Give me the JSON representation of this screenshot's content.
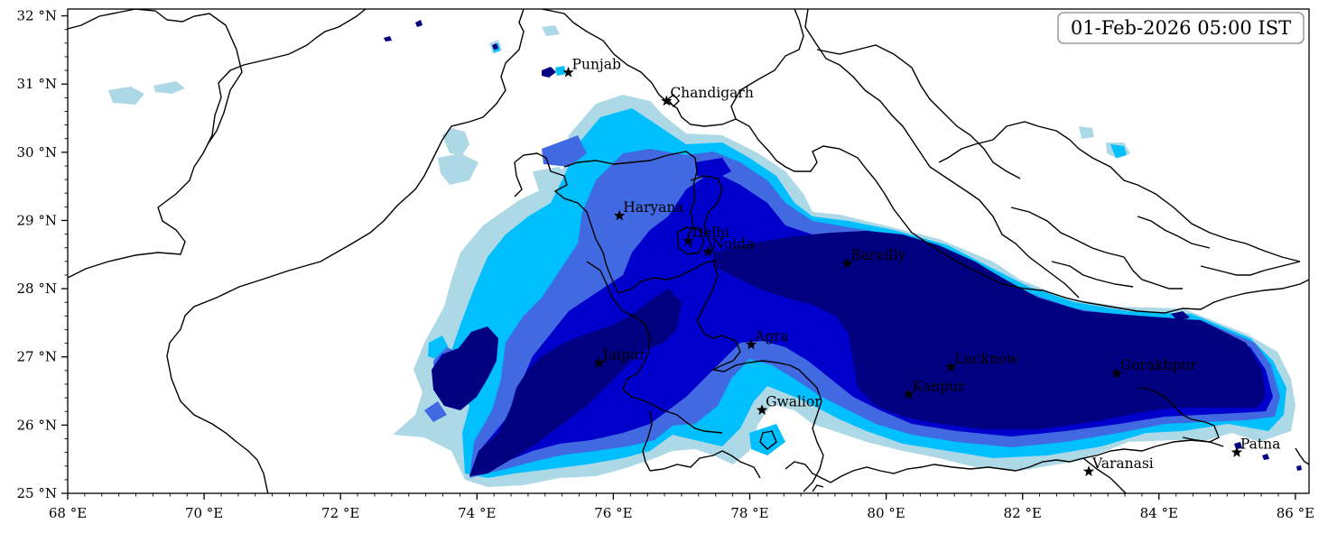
{
  "timestamp": "01-Feb-2026 05:00 IST",
  "colors": {
    "level1": "#add8e6",
    "level2": "#00bfff",
    "level3": "#4169e1",
    "level4": "#0000cd",
    "level5": "#000080",
    "border": "#000000"
  },
  "axes": {
    "lon_range": [
      68,
      86.2
    ],
    "lat_range": [
      25,
      32.1
    ],
    "x_ticks": [
      {
        "value": 68,
        "label": "68 °E"
      },
      {
        "value": 70,
        "label": "70 °E"
      },
      {
        "value": 72,
        "label": "72 °E"
      },
      {
        "value": 74,
        "label": "74 °E"
      },
      {
        "value": 76,
        "label": "76 °E"
      },
      {
        "value": 78,
        "label": "78 °E"
      },
      {
        "value": 80,
        "label": "80 °E"
      },
      {
        "value": 82,
        "label": "82 °E"
      },
      {
        "value": 84,
        "label": "84 °E"
      },
      {
        "value": 86,
        "label": "86 °E"
      }
    ],
    "y_ticks": [
      {
        "value": 25,
        "label": "25 °N"
      },
      {
        "value": 26,
        "label": "26 °N"
      },
      {
        "value": 27,
        "label": "27 °N"
      },
      {
        "value": 28,
        "label": "28 °N"
      },
      {
        "value": 29,
        "label": "29 °N"
      },
      {
        "value": 30,
        "label": "30 °N"
      },
      {
        "value": 31,
        "label": "31 °N"
      },
      {
        "value": 32,
        "label": "32 °N"
      }
    ]
  },
  "cities": [
    {
      "name": "Punjab",
      "lon": 75.34,
      "lat": 31.17
    },
    {
      "name": "Chandigarh",
      "lon": 76.78,
      "lat": 30.75
    },
    {
      "name": "Haryana",
      "lon": 76.09,
      "lat": 29.07
    },
    {
      "name": "Delhi",
      "lon": 77.1,
      "lat": 28.7
    },
    {
      "name": "Noida",
      "lon": 77.39,
      "lat": 28.54
    },
    {
      "name": "Bareilly",
      "lon": 79.43,
      "lat": 28.37
    },
    {
      "name": "Agra",
      "lon": 78.02,
      "lat": 27.18
    },
    {
      "name": "Jaipur",
      "lon": 75.79,
      "lat": 26.91
    },
    {
      "name": "Gwalior",
      "lon": 78.18,
      "lat": 26.22
    },
    {
      "name": "Lucknow",
      "lon": 80.95,
      "lat": 26.85
    },
    {
      "name": "Kanpur",
      "lon": 80.33,
      "lat": 26.45
    },
    {
      "name": "Gorakhpur",
      "lon": 83.38,
      "lat": 26.76
    },
    {
      "name": "Varanasi",
      "lon": 82.97,
      "lat": 25.32
    },
    {
      "name": "Patna",
      "lon": 85.14,
      "lat": 25.6
    }
  ]
}
